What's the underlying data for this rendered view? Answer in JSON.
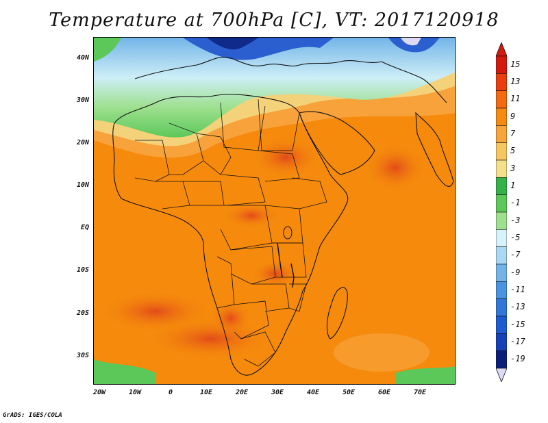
{
  "title": "Temperature at 700hPa [C], VT: 2017120918",
  "credit": "GrADS: IGES/COLA",
  "map": {
    "latitude_labels": [
      "40N",
      "30N",
      "20N",
      "10N",
      "EQ",
      "10S",
      "20S",
      "30S"
    ],
    "longitude_labels": [
      "20W",
      "10W",
      "0",
      "10E",
      "20E",
      "30E",
      "40E",
      "50E",
      "60E",
      "70E"
    ],
    "colors": {
      "very_warm": "#e8501e",
      "warm": "#f58a0c",
      "mild": "#f7a23a",
      "cool_yellow": "#f4d27a",
      "green": "#5cc85a",
      "light_green": "#9ee08e",
      "pale_blue": "#cdeef7",
      "blue": "#73b4e8",
      "dark_blue": "#2b5fd0",
      "navy": "#102a8a",
      "border": "#111111"
    }
  },
  "colorbar": {
    "labels": [
      "15",
      "13",
      "11",
      "9",
      "7",
      "5",
      "3",
      "1",
      "-1",
      "-3",
      "-5",
      "-7",
      "-9",
      "-11",
      "-13",
      "-15",
      "-17",
      "-19"
    ],
    "colors": [
      "#d4190f",
      "#ea3e0e",
      "#f46a10",
      "#f78a10",
      "#f8a53a",
      "#f6c660",
      "#f4e08a",
      "#33b24a",
      "#5cc85a",
      "#9ee08e",
      "#d6f3fb",
      "#a9d8f5",
      "#73b4e8",
      "#4a93e0",
      "#3077d8",
      "#1e5bd0",
      "#1540b8",
      "#0a1f7a"
    ],
    "top_triangle_color": "#d4190f",
    "bottom_triangle_color": "#dcdaf6"
  }
}
